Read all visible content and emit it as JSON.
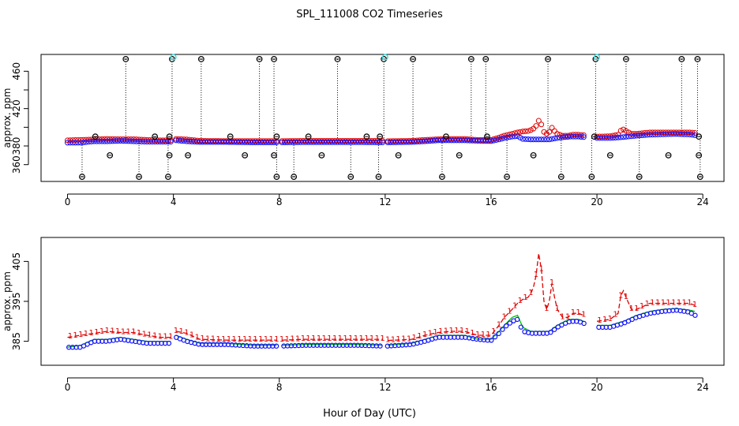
{
  "title": "SPL_111008  CO2 Timeseries",
  "xlabel": "Hour of Day (UTC)",
  "colors": {
    "black": "#000000",
    "red": "#e00000",
    "blue": "#1010ff",
    "green": "#00c000",
    "cyan": "#40e0e0"
  },
  "chart_data": [
    {
      "type": "scatter",
      "panel": "top",
      "ylabel": "approx. ppm",
      "xlim": [
        -1.0,
        24.8
      ],
      "ylim": [
        342,
        478
      ],
      "xticks": [
        0,
        4,
        8,
        12,
        16,
        20,
        24
      ],
      "yticks": [
        360,
        380,
        400,
        420,
        440,
        460
      ],
      "ytick_labels": [
        {
          "value": 380,
          "label": "380"
        },
        {
          "value": 420,
          "label": "420"
        },
        {
          "value": 460,
          "label": "460"
        },
        {
          "value": 360,
          "label": "360"
        }
      ],
      "saturated_high_value": 473,
      "saturated_low_value": 347,
      "cyan_flag_value": 475,
      "spikes_high_x": [
        2.2,
        3.95,
        5.05,
        7.25,
        7.8,
        10.2,
        11.95,
        13.05,
        15.25,
        15.8,
        18.15,
        19.95,
        21.1,
        23.2,
        23.8
      ],
      "spikes_low_x": [
        0.55,
        2.7,
        3.8,
        7.9,
        8.55,
        10.7,
        11.75,
        14.15,
        16.6,
        18.65,
        19.8,
        21.6,
        23.9
      ],
      "cyan_x": [
        4.0,
        12.0,
        20.0
      ],
      "outliers": [
        {
          "x": 1.05,
          "y": 390
        },
        {
          "x": 1.6,
          "y": 370
        },
        {
          "x": 3.3,
          "y": 390
        },
        {
          "x": 3.85,
          "y": 390
        },
        {
          "x": 3.85,
          "y": 370
        },
        {
          "x": 4.55,
          "y": 370
        },
        {
          "x": 6.15,
          "y": 390
        },
        {
          "x": 6.7,
          "y": 370
        },
        {
          "x": 7.9,
          "y": 390
        },
        {
          "x": 7.8,
          "y": 370
        },
        {
          "x": 9.1,
          "y": 390
        },
        {
          "x": 9.6,
          "y": 370
        },
        {
          "x": 11.3,
          "y": 390
        },
        {
          "x": 11.8,
          "y": 390
        },
        {
          "x": 12.5,
          "y": 370
        },
        {
          "x": 14.3,
          "y": 390
        },
        {
          "x": 14.8,
          "y": 370
        },
        {
          "x": 15.85,
          "y": 390
        },
        {
          "x": 17.6,
          "y": 370
        },
        {
          "x": 19.9,
          "y": 390
        },
        {
          "x": 20.5,
          "y": 370
        },
        {
          "x": 22.7,
          "y": 370
        },
        {
          "x": 23.85,
          "y": 390
        },
        {
          "x": 23.85,
          "y": 370
        }
      ]
    },
    {
      "type": "line",
      "panel": "bottom",
      "ylabel": "approx. ppm",
      "xlim": [
        -1.0,
        24.8
      ],
      "ylim": [
        379,
        411
      ],
      "xticks": [
        0,
        4,
        8,
        12,
        16,
        20,
        24
      ],
      "yticks": [
        385,
        395,
        405
      ],
      "ytick_labels": [
        {
          "value": 385,
          "label": "385"
        },
        {
          "value": 395,
          "label": "395"
        },
        {
          "value": 405,
          "label": "405"
        }
      ],
      "data_gaps": [
        [
          3.95,
          4.05
        ],
        [
          7.95,
          8.05
        ],
        [
          11.9,
          12.05
        ],
        [
          19.6,
          19.95
        ]
      ],
      "series": [
        {
          "name": "red",
          "marker": "1",
          "style": "dashed",
          "x": [
            0,
            0.5,
            1,
            1.5,
            2,
            2.5,
            3,
            3.5,
            3.9,
            4.1,
            4.5,
            5,
            6,
            7,
            7.9,
            8.1,
            9,
            10,
            11,
            11.9,
            12.1,
            13,
            13.5,
            14,
            14.5,
            15,
            15.5,
            16,
            16.3,
            16.5,
            16.8,
            17,
            17.2,
            17.4,
            17.5,
            17.6,
            17.7,
            17.8,
            17.9,
            18,
            18.1,
            18.2,
            18.3,
            18.4,
            18.5,
            18.7,
            18.9,
            19.1,
            19.3,
            19.5,
            20,
            20.5,
            20.8,
            20.95,
            21.1,
            21.3,
            21.5,
            22,
            22.5,
            23,
            23.5,
            23.7
          ],
          "y": [
            386,
            386.5,
            387,
            387.5,
            387.2,
            387.2,
            386.5,
            386,
            386,
            387.5,
            387,
            385.5,
            385.3,
            385.3,
            385.3,
            385.3,
            385.5,
            385.5,
            385.5,
            385.5,
            385.2,
            385.5,
            386.5,
            387.2,
            387.5,
            387.5,
            386.5,
            386.5,
            389,
            391,
            393,
            394.5,
            395.5,
            396,
            397,
            398.5,
            401.5,
            407,
            403,
            395,
            393,
            395,
            399.5,
            396,
            393,
            391,
            391,
            392,
            392,
            391.5,
            390,
            390.5,
            392,
            398.5,
            396,
            393,
            393,
            394.5,
            394.5,
            394.5,
            394.5,
            394
          ]
        },
        {
          "name": "green",
          "marker": "o",
          "style": "solid",
          "x": [
            0,
            0.5,
            1,
            1.5,
            2,
            2.5,
            3,
            3.5,
            3.9,
            4.1,
            4.5,
            5,
            6,
            7,
            7.9,
            8.1,
            9,
            10,
            11,
            11.9,
            12.1,
            13,
            13.5,
            14,
            14.5,
            15,
            15.5,
            16,
            16.3,
            16.5,
            16.8,
            17,
            17.2,
            17.5,
            17.8,
            18,
            18.2,
            18.5,
            18.8,
            19,
            19.3,
            19.5,
            20,
            20.5,
            21,
            21.5,
            22,
            22.5,
            23,
            23.5,
            23.7
          ],
          "y": [
            383.5,
            384,
            385.5,
            385.5,
            386,
            385.5,
            385,
            385,
            385,
            386.5,
            385.5,
            384.5,
            384.5,
            384,
            384,
            384,
            384.2,
            384.2,
            384.2,
            384,
            384,
            384.5,
            385.5,
            386.5,
            386.5,
            386.5,
            385.5,
            385.5,
            387.5,
            389,
            391,
            391.5,
            388.5,
            387.5,
            387.5,
            387.5,
            387.5,
            389,
            390,
            390.5,
            390.5,
            390,
            389,
            389,
            390,
            391.5,
            392.5,
            393,
            393.2,
            392.8,
            392.5
          ]
        },
        {
          "name": "blue",
          "marker": "o",
          "style": "none",
          "x": [
            0,
            0.5,
            1,
            1.5,
            2,
            2.5,
            3,
            3.5,
            3.9,
            4.1,
            4.5,
            5,
            6,
            7,
            7.9,
            8.1,
            9,
            10,
            11,
            11.9,
            12.1,
            13,
            13.5,
            14,
            14.5,
            15,
            15.5,
            16,
            16.3,
            16.5,
            16.8,
            17,
            17.2,
            17.5,
            17.8,
            18,
            18.2,
            18.5,
            18.8,
            19,
            19.3,
            19.5,
            20,
            20.5,
            21,
            21.5,
            22,
            22.5,
            23,
            23.5,
            23.7
          ],
          "y": [
            383.5,
            383.5,
            385,
            385,
            385.5,
            385,
            384.5,
            384.5,
            384.5,
            386,
            385,
            384.2,
            384.2,
            383.8,
            383.8,
            383.8,
            384,
            384,
            384,
            383.8,
            383.8,
            384.2,
            385,
            386,
            386,
            386,
            385.5,
            385.2,
            387,
            388.5,
            390,
            390.5,
            387.5,
            387,
            387,
            387,
            387,
            388.5,
            389.5,
            390,
            390,
            389.5,
            388.5,
            388.5,
            389.5,
            391,
            392,
            392.5,
            392.8,
            392.3,
            391.5
          ]
        }
      ]
    }
  ]
}
